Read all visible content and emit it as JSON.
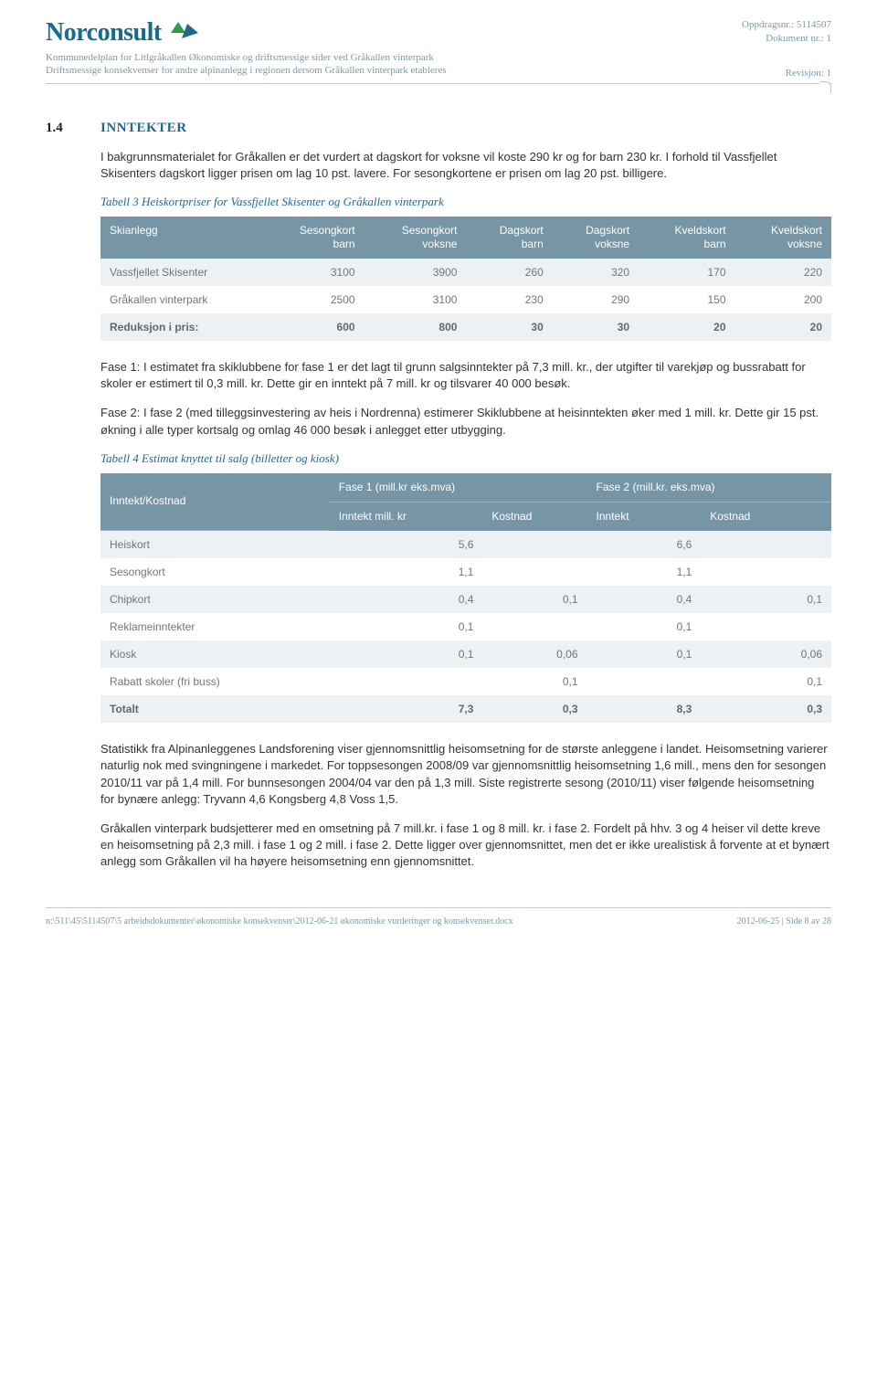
{
  "header": {
    "logo_text": "Norconsult",
    "sub1": "Kommunedelplan for Litlgråkallen Økonomiske og driftsmessige sider ved Gråkallen vinterpark",
    "sub2": "Driftsmessige konsekvenser for andre alpinanlegg i regionen dersom Gråkallen vinterpark etableres",
    "meta1": "Oppdragsnr.: 5114507",
    "meta2": "Dokument nr.: 1",
    "meta3": "Revisjon: 1"
  },
  "section": {
    "num": "1.4",
    "title": "INNTEKTER",
    "p1": "I bakgrunnsmaterialet for Gråkallen er det vurdert at dagskort for voksne vil koste 290 kr og for barn 230 kr. I forhold til Vassfjellet Skisenters dagskort ligger prisen om lag 10 pst. lavere. For sesongkortene er prisen om lag 20 pst. billigere."
  },
  "table3": {
    "caption": "Tabell 3 Heiskortpriser for Vassfjellet Skisenter og Gråkallen vinterpark",
    "headers": [
      "Skianlegg",
      "Sesongkort barn",
      "Sesongkort voksne",
      "Dagskort barn",
      "Dagskort voksne",
      "Kveldskort barn",
      "Kveldskort voksne"
    ],
    "rows": [
      {
        "label": "Vassfjellet Skisenter",
        "vals": [
          "3100",
          "3900",
          "260",
          "320",
          "170",
          "220"
        ]
      },
      {
        "label": "Gråkallen vinterpark",
        "vals": [
          "2500",
          "3100",
          "230",
          "290",
          "150",
          "200"
        ]
      },
      {
        "label": "Reduksjon i pris:",
        "vals": [
          "600",
          "800",
          "30",
          "30",
          "20",
          "20"
        ],
        "bold": true
      }
    ]
  },
  "mid": {
    "p2": "Fase 1: I estimatet fra skiklubbene for fase 1 er det lagt til grunn salgsinntekter på 7,3 mill. kr., der utgifter til varekjøp og bussrabatt for skoler er estimert til 0,3 mill. kr. Dette gir en inntekt på 7 mill. kr og tilsvarer 40 000 besøk.",
    "p3": "Fase 2: I fase 2 (med tilleggsinvestering av heis i Nordrenna) estimerer Skiklubbene at heisinntekten øker med 1 mill. kr. Dette gir 15 pst. økning i alle typer kortsalg og omlag 46 000 besøk i anlegget etter utbygging."
  },
  "table4": {
    "caption": "Tabell 4 Estimat knyttet til salg (billetter og kiosk)",
    "corner": "Inntekt/Kostnad",
    "top_headers": [
      "Fase 1 (mill.kr  eks.mva)",
      "Fase 2 (mill.kr. eks.mva)"
    ],
    "sub_headers": [
      "Inntekt mill. kr",
      "Kostnad",
      "Inntekt",
      "Kostnad"
    ],
    "rows": [
      {
        "label": "Heiskort",
        "vals": [
          "5,6",
          "",
          "6,6",
          ""
        ]
      },
      {
        "label": "Sesongkort",
        "vals": [
          "1,1",
          "",
          "1,1",
          ""
        ]
      },
      {
        "label": "Chipkort",
        "vals": [
          "0,4",
          "0,1",
          "0,4",
          "0,1"
        ]
      },
      {
        "label": "Reklameinntekter",
        "vals": [
          "0,1",
          "",
          "0,1",
          ""
        ]
      },
      {
        "label": "Kiosk",
        "vals": [
          "0,1",
          "0,06",
          "0,1",
          "0,06"
        ]
      },
      {
        "label": "Rabatt skoler (fri buss)",
        "vals": [
          "",
          "0,1",
          "",
          "0,1"
        ]
      },
      {
        "label": "Totalt",
        "vals": [
          "7,3",
          "0,3",
          "8,3",
          "0,3"
        ],
        "bold": true
      }
    ]
  },
  "bottom": {
    "p4": "Statistikk fra Alpinanleggenes Landsforening viser gjennomsnittlig heisomsetning for de største anleggene i landet. Heisomsetning varierer naturlig nok med svingningene i markedet. For toppsesongen 2008/09 var gjennomsnittlig heisomsetning 1,6 mill., mens den for sesongen 2010/11 var på 1,4 mill. For bunnsesongen 2004/04 var den på 1,3 mill. Siste registrerte sesong (2010/11) viser følgende heisomsetning for bynære anlegg: Tryvann 4,6  Kongsberg 4,8  Voss 1,5.",
    "p5": "Gråkallen vinterpark budsjetterer med en omsetning på 7 mill.kr. i fase 1 og 8 mill. kr. i fase 2. Fordelt på hhv. 3 og 4 heiser vil dette kreve en heisomsetning på 2,3 mill. i fase 1 og 2 mill. i fase 2. Dette ligger over gjennomsnittet, men det er ikke urealistisk å forvente at et bynært anlegg som Gråkallen vil ha høyere heisomsetning enn gjennomsnittet."
  },
  "footer": {
    "left": "n:\\511\\45\\5114507\\5 arbeidsdokumenter\\økonomiske konsekvenser\\2012-06-21 økonomiske vurderinger og konsekvenser.docx",
    "right": "2012-06-25 | Side 8 av 28"
  },
  "style": {
    "header_bg": "#7695a5",
    "header_fg": "#ffffff",
    "row_alt_bg": "#eef1f3",
    "accent": "#1c6b8d",
    "muted": "#7a9aa8"
  }
}
